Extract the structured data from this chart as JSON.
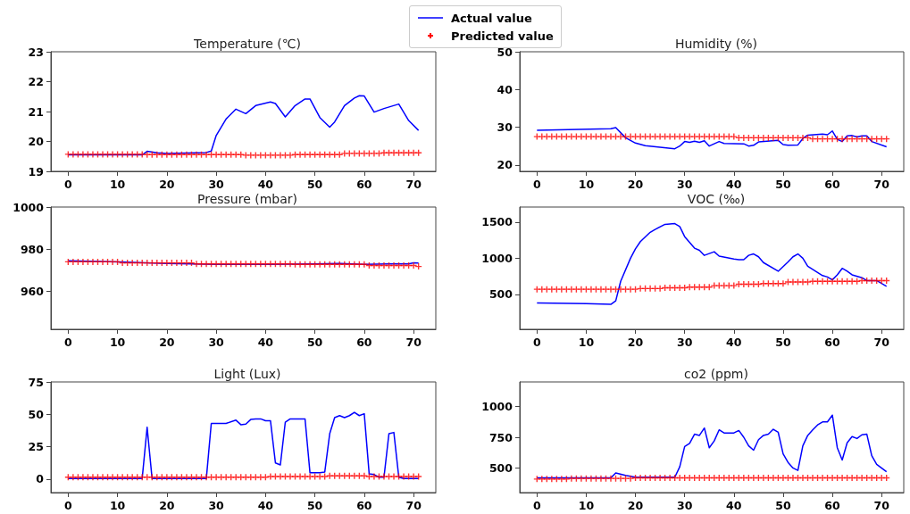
{
  "chart_data": [
    {
      "type": "line",
      "title": "Temperature (℃)",
      "legend": "top",
      "line_style": "solid",
      "xlim": [
        -3.5,
        74.5
      ],
      "xticks": [
        0,
        10,
        20,
        30,
        40,
        50,
        60,
        70
      ],
      "ylim": [
        19,
        23
      ],
      "yticks": [
        19,
        20,
        21,
        22,
        23
      ],
      "x": [
        0,
        1,
        2,
        3,
        4,
        5,
        6,
        7,
        8,
        9,
        10,
        11,
        12,
        13,
        14,
        15,
        16,
        17,
        18,
        19,
        20,
        21,
        22,
        23,
        24,
        25,
        26,
        27,
        28,
        29,
        30,
        31,
        32,
        33,
        34,
        35,
        36,
        37,
        38,
        39,
        40,
        41,
        42,
        43,
        44,
        45,
        46,
        47,
        48,
        49,
        50,
        51,
        52,
        53,
        54,
        55,
        56,
        57,
        58,
        59,
        60,
        61,
        62,
        63,
        64,
        65,
        66,
        67,
        68,
        69,
        70,
        71
      ],
      "series": [
        {
          "name": "Actual value",
          "type": "line",
          "marker": "none",
          "color": "#0000ff",
          "x": [
            0,
            15,
            16,
            18,
            20,
            28,
            29,
            30,
            32,
            34,
            36,
            38,
            41,
            42,
            44,
            46,
            48,
            49,
            51,
            53,
            54,
            56,
            58,
            59,
            60,
            62,
            64,
            67,
            69,
            71
          ],
          "values": [
            19.55,
            19.55,
            19.67,
            19.62,
            19.6,
            19.63,
            19.68,
            20.2,
            20.75,
            21.08,
            20.93,
            21.2,
            21.32,
            21.27,
            20.82,
            21.2,
            21.42,
            21.42,
            20.8,
            20.48,
            20.65,
            21.2,
            21.45,
            21.53,
            21.52,
            20.98,
            21.1,
            21.25,
            20.7,
            20.37
          ]
        },
        {
          "name": "Predicted value",
          "type": "scatter",
          "marker": "cross",
          "color": "#ff0000",
          "values": [
            19.57,
            19.57,
            19.57,
            19.57,
            19.57,
            19.57,
            19.57,
            19.57,
            19.57,
            19.57,
            19.57,
            19.57,
            19.57,
            19.57,
            19.57,
            19.57,
            19.56,
            19.56,
            19.56,
            19.56,
            19.56,
            19.56,
            19.56,
            19.56,
            19.56,
            19.56,
            19.56,
            19.56,
            19.56,
            19.56,
            19.56,
            19.56,
            19.56,
            19.56,
            19.56,
            19.56,
            19.54,
            19.54,
            19.54,
            19.54,
            19.54,
            19.54,
            19.54,
            19.54,
            19.54,
            19.54,
            19.56,
            19.56,
            19.56,
            19.56,
            19.56,
            19.56,
            19.56,
            19.56,
            19.56,
            19.56,
            19.6,
            19.6,
            19.6,
            19.6,
            19.6,
            19.6,
            19.6,
            19.6,
            19.62,
            19.62,
            19.62,
            19.62,
            19.62,
            19.62,
            19.62,
            19.62
          ]
        }
      ]
    },
    {
      "type": "line",
      "title": "Humidity (%)",
      "line_style": "solid",
      "xlim": [
        -3.5,
        74.5
      ],
      "xticks": [
        0,
        10,
        20,
        30,
        40,
        50,
        60,
        70
      ],
      "ylim": [
        18.3,
        50
      ],
      "yticks": [
        20,
        30,
        40,
        50
      ],
      "x": [
        0,
        1,
        2,
        3,
        4,
        5,
        6,
        7,
        8,
        9,
        10,
        11,
        12,
        13,
        14,
        15,
        16,
        17,
        18,
        19,
        20,
        21,
        22,
        23,
        24,
        25,
        26,
        27,
        28,
        29,
        30,
        31,
        32,
        33,
        34,
        35,
        36,
        37,
        38,
        39,
        40,
        41,
        42,
        43,
        44,
        45,
        46,
        47,
        48,
        49,
        50,
        51,
        52,
        53,
        54,
        55,
        56,
        57,
        58,
        59,
        60,
        61,
        62,
        63,
        64,
        65,
        66,
        67,
        68,
        69,
        70,
        71
      ],
      "series": [
        {
          "name": "Actual value",
          "type": "line",
          "marker": "none",
          "color": "#0000ff",
          "x": [
            0,
            15,
            16,
            18,
            20,
            22,
            28,
            29,
            30,
            31,
            32,
            33,
            34,
            35,
            37,
            38,
            42,
            43,
            44,
            45,
            49,
            50,
            51,
            53,
            54,
            55,
            58,
            59,
            60,
            61,
            62,
            63,
            64,
            65,
            66,
            67,
            68,
            71
          ],
          "values": [
            29.2,
            29.6,
            29.9,
            27.2,
            25.8,
            25.1,
            24.3,
            25,
            26.2,
            26,
            26.3,
            26,
            26.4,
            25,
            26.2,
            25.7,
            25.6,
            25,
            25.2,
            26.1,
            26.5,
            25.4,
            25.2,
            25.3,
            27,
            27.9,
            28.2,
            28,
            29,
            26.8,
            26.2,
            27.7,
            27.8,
            27.4,
            27.7,
            27.7,
            26.2,
            24.8
          ]
        },
        {
          "name": "Predicted value",
          "type": "scatter",
          "marker": "cross",
          "color": "#ff0000",
          "values": [
            27.5,
            27.5,
            27.5,
            27.5,
            27.5,
            27.5,
            27.5,
            27.5,
            27.5,
            27.5,
            27.5,
            27.5,
            27.5,
            27.5,
            27.5,
            27.5,
            27.5,
            27.5,
            27.5,
            27.5,
            27.5,
            27.5,
            27.5,
            27.5,
            27.5,
            27.5,
            27.5,
            27.5,
            27.5,
            27.5,
            27.5,
            27.5,
            27.5,
            27.5,
            27.5,
            27.5,
            27.5,
            27.5,
            27.5,
            27.5,
            27.5,
            27.2,
            27.2,
            27.2,
            27.2,
            27.2,
            27.2,
            27.2,
            27.2,
            27.2,
            27.2,
            27.2,
            27.2,
            27.2,
            27.2,
            27.2,
            26.9,
            26.9,
            26.9,
            26.9,
            26.9,
            26.9,
            26.9,
            26.9,
            26.9,
            26.9,
            26.9,
            26.9,
            26.9,
            26.9,
            26.9,
            26.9
          ]
        }
      ]
    },
    {
      "type": "line",
      "title": "Pressure (mbar)",
      "line_style": "solid",
      "xlim": [
        -3.5,
        74.5
      ],
      "xticks": [
        0,
        10,
        20,
        30,
        40,
        50,
        60,
        70
      ],
      "ylim": [
        942,
        1000
      ],
      "yticks": [
        960,
        980,
        1000
      ],
      "x": [
        0,
        1,
        2,
        3,
        4,
        5,
        6,
        7,
        8,
        9,
        10,
        11,
        12,
        13,
        14,
        15,
        16,
        17,
        18,
        19,
        20,
        21,
        22,
        23,
        24,
        25,
        26,
        27,
        28,
        29,
        30,
        31,
        32,
        33,
        34,
        35,
        36,
        37,
        38,
        39,
        40,
        41,
        42,
        43,
        44,
        45,
        46,
        47,
        48,
        49,
        50,
        51,
        52,
        53,
        54,
        55,
        56,
        57,
        58,
        59,
        60,
        61,
        62,
        63,
        64,
        65,
        66,
        67,
        68,
        69,
        70,
        71
      ],
      "series": [
        {
          "name": "Actual value",
          "type": "line",
          "marker": "none",
          "color": "#0000ff",
          "x": [
            0,
            10,
            20,
            30,
            40,
            50,
            55,
            60,
            65,
            69,
            70,
            71
          ],
          "values": [
            974.5,
            974,
            973.2,
            972.8,
            972.8,
            973,
            973.2,
            972.8,
            973,
            973,
            973.5,
            973.4
          ]
        },
        {
          "name": "Predicted value",
          "type": "scatter",
          "marker": "cross",
          "color": "#ff0000",
          "values": [
            974,
            974,
            974,
            974,
            974,
            974,
            974,
            974,
            974,
            974,
            974,
            973.5,
            973.5,
            973.5,
            973.5,
            973.5,
            973.5,
            973.5,
            973.5,
            973.5,
            973.5,
            973.5,
            973.5,
            973.5,
            973.5,
            973.5,
            973,
            973,
            973,
            973,
            973,
            973,
            973,
            973,
            973,
            973,
            973,
            973,
            973,
            973,
            973,
            973,
            973,
            973,
            973,
            973,
            972.8,
            972.8,
            972.8,
            972.8,
            972.8,
            972.8,
            972.8,
            972.8,
            972.8,
            972.8,
            972.8,
            972.8,
            972.8,
            972.8,
            972.8,
            972.3,
            972.3,
            972.3,
            972.3,
            972.3,
            972.3,
            972.3,
            972.3,
            972.3,
            972.3,
            971.8
          ]
        }
      ]
    },
    {
      "type": "line",
      "title": "VOC (‰)",
      "line_style": "solid",
      "xlim": [
        -3.5,
        74.5
      ],
      "xticks": [
        0,
        10,
        20,
        30,
        40,
        50,
        60,
        70
      ],
      "ylim": [
        15,
        1710
      ],
      "yticks": [
        500,
        1000,
        1500
      ],
      "x": [
        0,
        1,
        2,
        3,
        4,
        5,
        6,
        7,
        8,
        9,
        10,
        11,
        12,
        13,
        14,
        15,
        16,
        17,
        18,
        19,
        20,
        21,
        22,
        23,
        24,
        25,
        26,
        27,
        28,
        29,
        30,
        31,
        32,
        33,
        34,
        35,
        36,
        37,
        38,
        39,
        40,
        41,
        42,
        43,
        44,
        45,
        46,
        47,
        48,
        49,
        50,
        51,
        52,
        53,
        54,
        55,
        56,
        57,
        58,
        59,
        60,
        61,
        62,
        63,
        64,
        65,
        66,
        67,
        68,
        69,
        70,
        71
      ],
      "series": [
        {
          "name": "Actual value",
          "type": "line",
          "marker": "none",
          "color": "#0000ff",
          "x": [
            0,
            10,
            15,
            16,
            17,
            19,
            20,
            21,
            23,
            24,
            26,
            28,
            29,
            30,
            32,
            33,
            34,
            36,
            37,
            40,
            41,
            42,
            43,
            44,
            45,
            46,
            49,
            51,
            52,
            53,
            54,
            55,
            58,
            59,
            60,
            61,
            62,
            63,
            64,
            66,
            67,
            68,
            69,
            70,
            71
          ],
          "values": [
            380,
            370,
            360,
            410,
            680,
            1000,
            1130,
            1230,
            1360,
            1400,
            1470,
            1480,
            1440,
            1300,
            1140,
            1110,
            1040,
            1090,
            1030,
            990,
            980,
            980,
            1040,
            1060,
            1020,
            940,
            820,
            950,
            1020,
            1060,
            1000,
            890,
            760,
            740,
            700,
            770,
            860,
            820,
            770,
            730,
            690,
            690,
            690,
            650,
            610
          ]
        },
        {
          "name": "Predicted value",
          "type": "scatter",
          "marker": "cross",
          "color": "#ff0000",
          "values": [
            570,
            570,
            570,
            570,
            570,
            570,
            570,
            570,
            570,
            570,
            570,
            570,
            570,
            570,
            570,
            570,
            570,
            570,
            570,
            570,
            570,
            580,
            580,
            580,
            580,
            580,
            590,
            590,
            590,
            590,
            590,
            600,
            600,
            600,
            600,
            600,
            620,
            620,
            620,
            620,
            620,
            640,
            640,
            640,
            640,
            640,
            650,
            650,
            650,
            650,
            650,
            670,
            670,
            670,
            670,
            670,
            680,
            680,
            680,
            680,
            680,
            680,
            680,
            680,
            680,
            680,
            690,
            690,
            690,
            690,
            690,
            690
          ]
        }
      ]
    },
    {
      "type": "line",
      "title": "Light (Lux)",
      "line_style": "solid",
      "xlim": [
        -3.5,
        74.5
      ],
      "xticks": [
        0,
        10,
        20,
        30,
        40,
        50,
        60,
        70
      ],
      "ylim": [
        -10.4,
        75
      ],
      "yticks": [
        0,
        25,
        50,
        75
      ],
      "x": [
        0,
        1,
        2,
        3,
        4,
        5,
        6,
        7,
        8,
        9,
        10,
        11,
        12,
        13,
        14,
        15,
        16,
        17,
        18,
        19,
        20,
        21,
        22,
        23,
        24,
        25,
        26,
        27,
        28,
        29,
        30,
        31,
        32,
        33,
        34,
        35,
        36,
        37,
        38,
        39,
        40,
        41,
        42,
        43,
        44,
        45,
        46,
        47,
        48,
        49,
        50,
        51,
        52,
        53,
        54,
        55,
        56,
        57,
        58,
        59,
        60,
        61,
        62,
        63,
        64,
        65,
        66,
        67,
        68,
        69,
        70,
        71
      ],
      "series": [
        {
          "name": "Actual value",
          "type": "line",
          "marker": "none",
          "color": "#0000ff",
          "x": [
            0,
            15,
            16,
            17,
            28,
            29,
            32,
            34,
            35,
            36,
            37,
            38,
            39,
            40,
            41,
            42,
            43,
            44,
            45,
            47,
            48,
            49,
            51,
            52,
            53,
            54,
            55,
            56,
            57,
            58,
            59,
            60,
            61,
            62,
            63,
            64,
            65,
            66,
            67,
            68,
            71
          ],
          "values": [
            0.5,
            0.5,
            40,
            0.5,
            0.5,
            43,
            43,
            45.5,
            42,
            42.5,
            46,
            46.5,
            46.5,
            45,
            45,
            12.5,
            11,
            44,
            46.5,
            46.5,
            46.5,
            5,
            5,
            5.5,
            35,
            47.5,
            49,
            47.5,
            49,
            51.5,
            49,
            50.5,
            4,
            3.5,
            1.5,
            1.5,
            35,
            36,
            1.5,
            0.5,
            0.5
          ]
        },
        {
          "name": "Predicted value",
          "type": "scatter",
          "marker": "cross",
          "color": "#ff0000",
          "values": [
            1.5,
            1.5,
            1.5,
            1.5,
            1.5,
            1.5,
            1.5,
            1.5,
            1.5,
            1.5,
            1.5,
            1.5,
            1.5,
            1.5,
            1.5,
            1.5,
            1.5,
            1.5,
            1.5,
            1.5,
            1.5,
            1.5,
            1.5,
            1.5,
            1.5,
            1.5,
            1.5,
            1.5,
            1.5,
            1.5,
            1.5,
            1.5,
            1.5,
            1.5,
            1.5,
            1.5,
            1.5,
            1.5,
            1.5,
            1.5,
            1.5,
            2,
            2,
            2,
            2,
            2,
            2,
            2,
            2,
            2,
            2,
            2,
            2,
            2.5,
            2.5,
            2.5,
            2.5,
            2.5,
            2.5,
            2.5,
            2.5,
            2,
            2,
            2,
            2,
            2,
            2,
            2,
            2,
            2,
            2,
            2
          ]
        }
      ]
    },
    {
      "type": "line",
      "title": "co2 (ppm)",
      "line_style": "solid",
      "xlim": [
        -3.5,
        74.5
      ],
      "xticks": [
        0,
        10,
        20,
        30,
        40,
        50,
        60,
        70
      ],
      "ylim": [
        300,
        1200
      ],
      "yticks": [
        500,
        750,
        1000
      ],
      "x": [
        0,
        1,
        2,
        3,
        4,
        5,
        6,
        7,
        8,
        9,
        10,
        11,
        12,
        13,
        14,
        15,
        16,
        17,
        18,
        19,
        20,
        21,
        22,
        23,
        24,
        25,
        26,
        27,
        28,
        29,
        30,
        31,
        32,
        33,
        34,
        35,
        36,
        37,
        38,
        39,
        40,
        41,
        42,
        43,
        44,
        45,
        46,
        47,
        48,
        49,
        50,
        51,
        52,
        53,
        54,
        55,
        56,
        57,
        58,
        59,
        60,
        61,
        62,
        63,
        64,
        65,
        66,
        67,
        68,
        69,
        70,
        71
      ],
      "series": [
        {
          "name": "Actual value",
          "type": "line",
          "marker": "none",
          "color": "#0000ff",
          "x": [
            0,
            15,
            16,
            18,
            20,
            28,
            29,
            30,
            31,
            32,
            33,
            34,
            35,
            36,
            37,
            38,
            40,
            41,
            42,
            43,
            44,
            45,
            46,
            47,
            48,
            49,
            50,
            51,
            52,
            53,
            54,
            55,
            56,
            57,
            58,
            59,
            60,
            61,
            62,
            63,
            64,
            65,
            66,
            67,
            68,
            69,
            71
          ],
          "values": [
            420,
            420,
            460,
            440,
            425,
            425,
            510,
            675,
            700,
            775,
            765,
            825,
            665,
            720,
            810,
            785,
            785,
            805,
            750,
            680,
            645,
            730,
            765,
            775,
            815,
            790,
            615,
            545,
            500,
            480,
            680,
            765,
            810,
            850,
            875,
            875,
            930,
            665,
            565,
            705,
            755,
            740,
            770,
            775,
            600,
            530,
            470
          ]
        },
        {
          "name": "Predicted value",
          "type": "scatter",
          "marker": "cross",
          "color": "#ff0000",
          "values": [
            410,
            410,
            410,
            410,
            410,
            410,
            410,
            415,
            415,
            415,
            415,
            415,
            415,
            415,
            415,
            415,
            415,
            415,
            415,
            415,
            420,
            420,
            420,
            420,
            420,
            420,
            420,
            420,
            420,
            420,
            420,
            420,
            420,
            420,
            420,
            420,
            420,
            420,
            420,
            420,
            420,
            420,
            420,
            420,
            420,
            420,
            420,
            420,
            420,
            420,
            420,
            420,
            420,
            420,
            420,
            420,
            420,
            420,
            420,
            420,
            420,
            420,
            420,
            420,
            420,
            420,
            420,
            420,
            420,
            420,
            420,
            420
          ]
        }
      ]
    }
  ]
}
